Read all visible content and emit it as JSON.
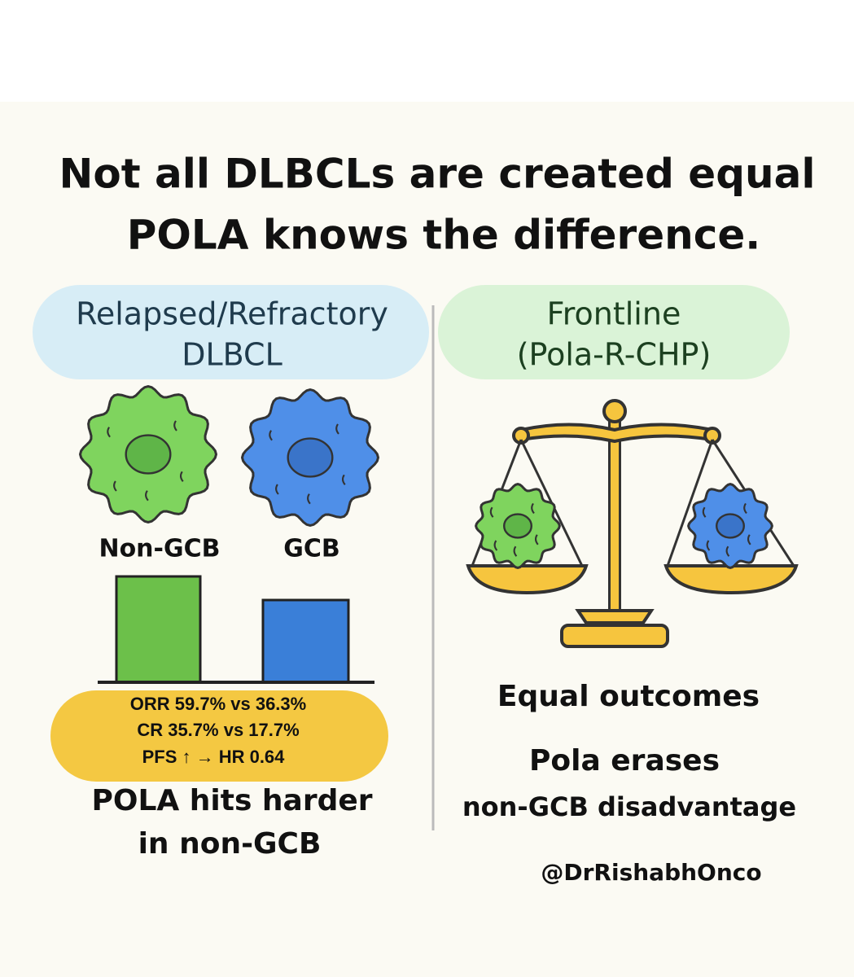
{
  "header": {
    "title_lines": [
      "Not all DLBCLs are created equal",
      "POLA knows the difference."
    ]
  },
  "left_panel": {
    "heading_lines": [
      "Relapsed/Refractory",
      "DLBCL"
    ],
    "cells": [
      {
        "label": "Non-GCB"
      },
      {
        "label": "GCB"
      }
    ],
    "stats": [
      "ORR 59.7% vs 36.3%",
      "CR 35.7% vs 17.7%",
      "PFS ↑ → HR 0.64"
    ],
    "conclusion_lines": [
      "POLA hits harder",
      "in non-GCB"
    ]
  },
  "right_panel": {
    "heading_lines": [
      "Frontline",
      "(Pola-R-CHP)"
    ],
    "conclusion": "Equal outcomes",
    "detail_lines": [
      "Pola erases",
      "non-GCB disadvantage"
    ],
    "handle": "@DrRishabhOnco"
  }
}
